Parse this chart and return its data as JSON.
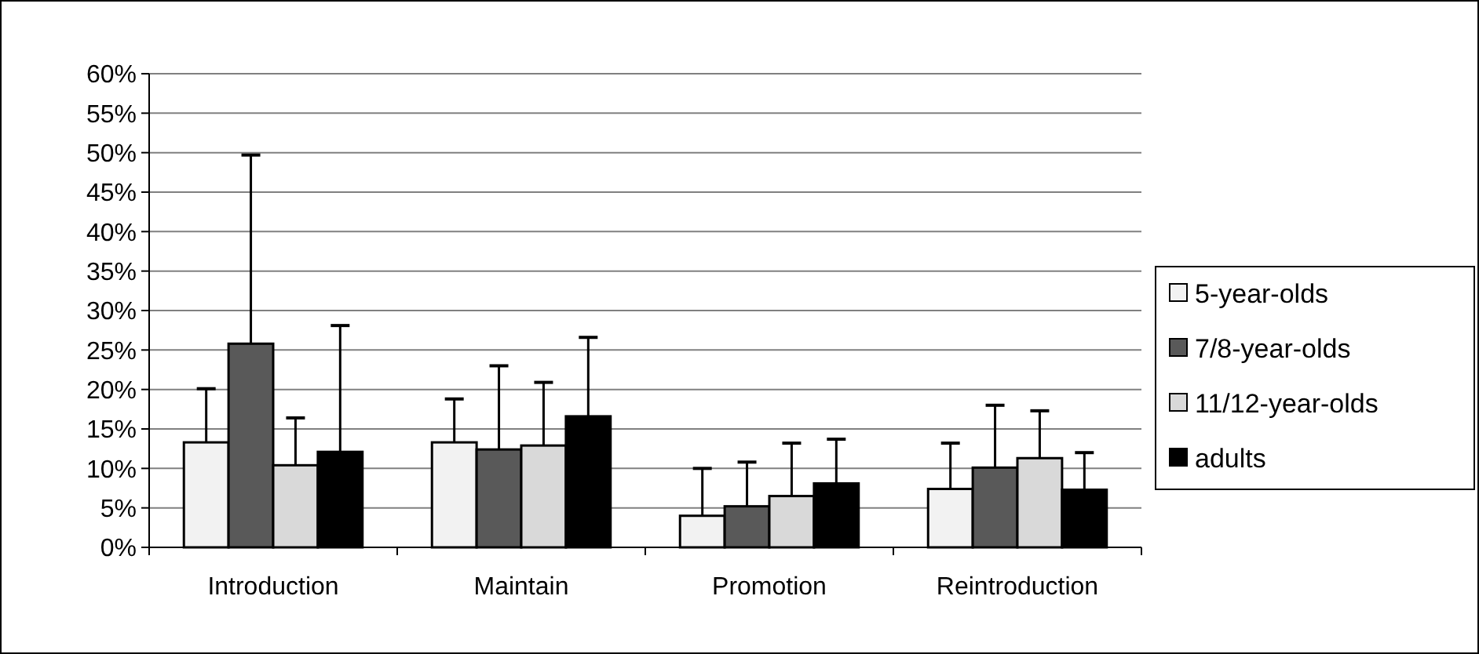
{
  "chart_data": {
    "type": "bar",
    "categories": [
      "Introduction",
      "Maintain",
      "Promotion",
      "Reintroduction"
    ],
    "series": [
      {
        "name": "5-year-olds",
        "color": "#f2f2f2",
        "values": [
          13.3,
          13.3,
          4.0,
          7.4
        ],
        "errors": [
          [
            13.3,
            20.1
          ],
          [
            13.3,
            18.8
          ],
          [
            4.0,
            10.0
          ],
          [
            7.4,
            13.2
          ]
        ]
      },
      {
        "name": "7/8-year-olds",
        "color": "#595959",
        "values": [
          25.8,
          12.4,
          5.2,
          10.1
        ],
        "errors": [
          [
            25.8,
            49.7
          ],
          [
            12.4,
            23.0
          ],
          [
            5.2,
            10.8
          ],
          [
            10.1,
            18.0
          ]
        ]
      },
      {
        "name": "11/12-year-olds",
        "color": "#d9d9d9",
        "values": [
          10.4,
          12.9,
          6.5,
          11.3
        ],
        "errors": [
          [
            10.4,
            16.4
          ],
          [
            12.9,
            20.9
          ],
          [
            6.5,
            13.2
          ],
          [
            11.3,
            17.3
          ]
        ]
      },
      {
        "name": "adults",
        "color": "#000000",
        "values": [
          12.1,
          16.6,
          8.1,
          7.3
        ],
        "errors": [
          [
            12.1,
            28.1
          ],
          [
            16.6,
            26.6
          ],
          [
            8.1,
            13.7
          ],
          [
            7.3,
            12.0
          ]
        ]
      }
    ],
    "ylim": [
      0,
      60
    ],
    "yticks": [
      {
        "value": 0,
        "label": "0%"
      },
      {
        "value": 5,
        "label": "5%"
      },
      {
        "value": 10,
        "label": "10%"
      },
      {
        "value": 15,
        "label": "15%"
      },
      {
        "value": 20,
        "label": "20%"
      },
      {
        "value": 25,
        "label": "25%"
      },
      {
        "value": 30,
        "label": "30%"
      },
      {
        "value": 35,
        "label": "35%"
      },
      {
        "value": 40,
        "label": "40%"
      },
      {
        "value": 45,
        "label": "45%"
      },
      {
        "value": 50,
        "label": "50%"
      },
      {
        "value": 55,
        "label": "55%"
      },
      {
        "value": 60,
        "label": "60%"
      }
    ],
    "grid": "y",
    "legend": "right"
  }
}
